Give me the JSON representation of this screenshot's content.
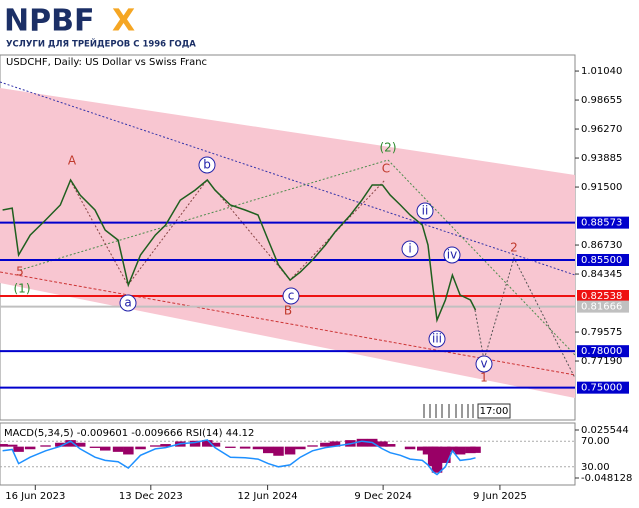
{
  "logo": {
    "main": "NPBF",
    "accent": "X",
    "tagline": "УСЛУГИ ДЛЯ ТРЕЙДЕРОВ С 1996 ГОДА"
  },
  "chart_data": [
    {
      "type": "line",
      "title": "USDCHF, Daily:  US Dollar vs Swiss Franc",
      "color": "#1f5f1f",
      "x": [
        "2023-04-26",
        "2023-05-11",
        "2023-05-21",
        "2023-06-08",
        "2023-07-02",
        "2023-07-25",
        "2023-08-10",
        "2023-08-25",
        "2023-09-17",
        "2023-10-03",
        "2023-10-23",
        "2023-11-08",
        "2023-11-27",
        "2023-12-20",
        "2024-01-05",
        "2024-01-28",
        "2024-02-20",
        "2024-03-10",
        "2024-03-22",
        "2024-04-15",
        "2024-05-08",
        "2024-05-28",
        "2024-06-13",
        "2024-06-29",
        "2024-07-17",
        "2024-08-02",
        "2024-08-21",
        "2024-09-10",
        "2024-09-25",
        "2024-10-19",
        "2024-11-06",
        "2024-11-22",
        "2024-12-08",
        "2024-12-20",
        "2025-01-05",
        "2025-01-20",
        "2025-02-08",
        "2025-02-17",
        "2025-02-25",
        "2025-03-03",
        "2025-03-16",
        "2025-03-27",
        "2025-04-08",
        "2025-04-24",
        "2025-05-02"
      ],
      "values": [
        0.8961,
        0.8977,
        0.8591,
        0.8755,
        0.8879,
        0.9002,
        0.9208,
        0.9084,
        0.8961,
        0.8796,
        0.8714,
        0.8344,
        0.8591,
        0.8755,
        0.8838,
        0.9043,
        0.9125,
        0.9208,
        0.9125,
        0.9002,
        0.8961,
        0.892,
        0.8714,
        0.8509,
        0.8385,
        0.8451,
        0.855,
        0.8673,
        0.878,
        0.892,
        0.9043,
        0.9167,
        0.9167,
        0.9084,
        0.9002,
        0.892,
        0.8838,
        0.8673,
        0.8303,
        0.8056,
        0.8221,
        0.8426,
        0.8262,
        0.8221,
        0.8139
      ],
      "xlim": [
        "2023-04-22",
        "2025-10-04"
      ],
      "xticks": [
        {
          "value": "2023-06-16",
          "label": "16 Jun 2023"
        },
        {
          "value": "2023-12-13",
          "label": "13 Dec 2023"
        },
        {
          "value": "2024-06-12",
          "label": "12 Jun 2024"
        },
        {
          "value": "2024-12-09",
          "label": "9 Dec 2024"
        },
        {
          "value": "2025-06-09",
          "label": "9 Jun 2025"
        }
      ],
      "ylim": [
        0.7234,
        1.0236
      ],
      "yticks": [
        {
          "value": 1.0104,
          "label": "1.01040"
        },
        0.98655,
        {
          "value": 0.9627,
          "label": "0.96270"
        },
        0.93885,
        {
          "value": 0.915,
          "label": "0.91500"
        },
        {
          "value": 0.8673,
          "label": "0.86730"
        },
        0.84345,
        0.79575,
        {
          "value": 0.7719,
          "label": "0.77190"
        }
      ],
      "levels": [
        {
          "value": 0.88573,
          "color": "#0000cc"
        },
        {
          "value": 0.855,
          "label": "0.85500",
          "color": "#0000cc"
        },
        {
          "value": 0.82538,
          "color": "#ee1111"
        },
        {
          "value": 0.81666,
          "color": "#c0c0c0"
        },
        {
          "value": 0.78,
          "label": "0.78000",
          "color": "#0000cc"
        },
        {
          "value": 0.75,
          "label": "0.75000",
          "color": "#0000cc"
        }
      ],
      "annotations": [
        "A",
        "B",
        "C",
        "(1)",
        "(2)",
        "5",
        "a",
        "b",
        "c",
        "i",
        "ii",
        "iii",
        "iv",
        "v",
        "1",
        "2"
      ],
      "time_label": "17:00"
    },
    {
      "type": "indicator",
      "title": "MACD(5,34,5) -0.009601 -0.009666 RSI(14) 44.12",
      "macd_color": "#990066",
      "rsi_color": "#1e90ff",
      "macd": [
        0.004,
        0.003,
        -0.008,
        -0.004,
        0.002,
        0.006,
        0.01,
        0.006,
        -0.002,
        -0.006,
        -0.008,
        -0.012,
        -0.004,
        0.002,
        0.004,
        0.008,
        0.009,
        0.01,
        0.006,
        -0.002,
        -0.003,
        -0.004,
        -0.01,
        -0.014,
        -0.012,
        -0.004,
        0.002,
        0.006,
        0.008,
        0.01,
        0.012,
        0.012,
        0.008,
        0.004,
        0,
        -0.004,
        -0.006,
        -0.012,
        -0.03,
        -0.04,
        -0.025,
        -0.008,
        -0.012,
        -0.01,
        -0.0096
      ],
      "rsi": [
        55,
        57,
        35,
        45,
        55,
        62,
        70,
        58,
        45,
        40,
        38,
        28,
        48,
        58,
        60,
        66,
        68,
        72,
        60,
        45,
        44,
        42,
        35,
        30,
        33,
        45,
        55,
        60,
        62,
        66,
        70,
        68,
        58,
        52,
        48,
        42,
        40,
        33,
        22,
        18,
        30,
        55,
        40,
        42,
        44.12
      ],
      "ylim": [
        -0.048128,
        0.025544
      ],
      "yticks": [
        0.025544,
        -0.048128
      ],
      "rsi_ylim": [
        0,
        100
      ],
      "rsi_ticks": [
        {
          "value": 70,
          "label": "70.00"
        },
        {
          "value": 30,
          "label": "30.00"
        }
      ]
    }
  ]
}
